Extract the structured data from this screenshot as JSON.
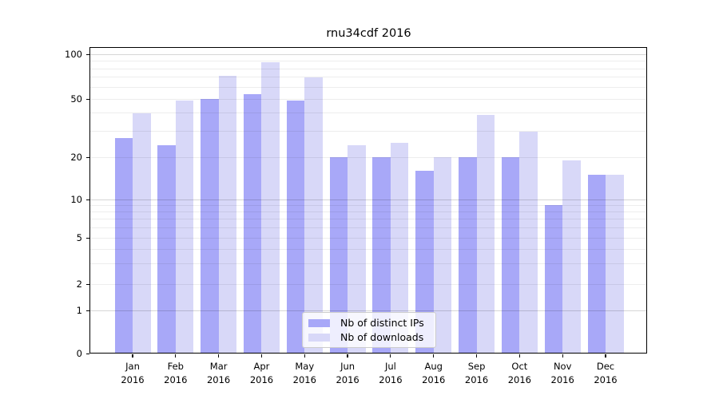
{
  "chart_data": {
    "type": "bar",
    "title": "rnu34cdf 2016",
    "categories": [
      "Jan 2016",
      "Feb 2016",
      "Mar 2016",
      "Apr 2016",
      "May 2016",
      "Jun 2016",
      "Jul 2016",
      "Aug 2016",
      "Sep 2016",
      "Oct 2016",
      "Nov 2016",
      "Dec 2016"
    ],
    "month_line1": [
      "Jan",
      "Feb",
      "Mar",
      "Apr",
      "May",
      "Jun",
      "Jul",
      "Aug",
      "Sep",
      "Oct",
      "Nov",
      "Dec"
    ],
    "month_line2": [
      "2016",
      "2016",
      "2016",
      "2016",
      "2016",
      "2016",
      "2016",
      "2016",
      "2016",
      "2016",
      "2016",
      "2016"
    ],
    "series": [
      {
        "name": "Nb of distinct IPs",
        "color": "#a8a8f8",
        "values": [
          27,
          24,
          50,
          54,
          49,
          20,
          20,
          16,
          20,
          20,
          9,
          15
        ]
      },
      {
        "name": "Nb of downloads",
        "color": "#d8d8f8",
        "values": [
          40,
          49,
          72,
          88,
          70,
          24,
          25,
          20,
          39,
          30,
          19,
          15
        ]
      }
    ],
    "yscale": "symlog",
    "yticks": [
      100,
      50,
      20,
      10,
      5,
      2,
      1,
      0
    ],
    "ytick_labels": [
      "100",
      "50",
      "20",
      "10",
      "5",
      "2",
      "1",
      "0"
    ],
    "ylim": [
      0,
      110
    ],
    "grid": true,
    "legend_position": "lower center",
    "minor_gridlines": [
      2,
      3,
      4,
      5,
      6,
      7,
      8,
      9,
      20,
      30,
      40,
      50,
      60,
      70,
      80,
      90
    ],
    "major_gridlines": [
      1,
      10,
      100
    ]
  }
}
